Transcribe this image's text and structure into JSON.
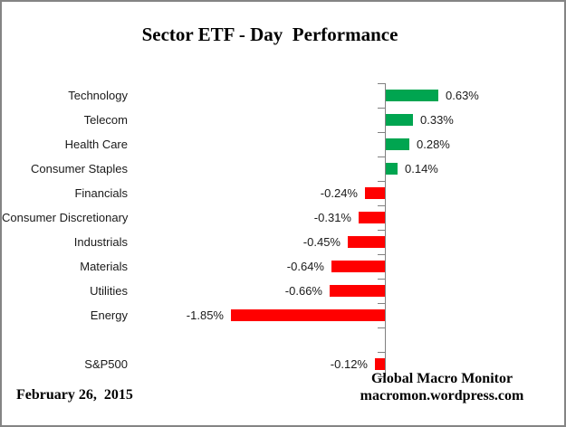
{
  "title": "Sector ETF - Day  Performance",
  "chart_data": {
    "type": "bar",
    "orientation": "horizontal",
    "unit": "percent",
    "categories": [
      "Technology",
      "Telecom",
      "Health Care",
      "Consumer Staples",
      "Financials",
      "Consumer Discretionary",
      "Industrials",
      "Materials",
      "Utilities",
      "Energy",
      "",
      "S&P500"
    ],
    "values": [
      0.63,
      0.33,
      0.28,
      0.14,
      -0.24,
      -0.31,
      -0.45,
      -0.64,
      -0.66,
      -1.85,
      null,
      -0.12
    ],
    "value_labels": [
      "0.63%",
      "0.33%",
      "0.28%",
      "0.14%",
      "-0.24%",
      "-0.31%",
      "-0.45%",
      "-0.64%",
      "-0.66%",
      "-1.85%",
      "",
      "-0.12%"
    ],
    "title": "Sector ETF - Day  Performance",
    "xlabel": "",
    "ylabel": "",
    "legend": "none",
    "grid": "off",
    "axis": {
      "zero_line": true,
      "tick_marks": "category-boundaries"
    },
    "colors": {
      "positive": "#00A550",
      "negative": "#FF0000",
      "axis": "#808080"
    }
  },
  "footer": {
    "date": "February 26,  2015",
    "attribution_line1": "Global Macro Monitor",
    "attribution_line2": "macromon.wordpress.com"
  }
}
